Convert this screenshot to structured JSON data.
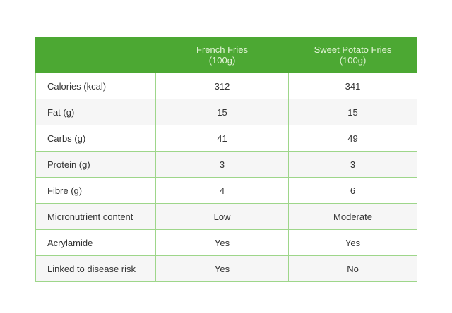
{
  "table": {
    "headers": [
      "",
      "French Fries\n(100g)",
      "Sweet Potato Fries\n(100g)"
    ],
    "header_lines": [
      [
        "French Fries",
        "(100g)"
      ],
      [
        "Sweet Potato Fries",
        "(100g)"
      ]
    ],
    "rows": [
      [
        "Calories (kcal)",
        "312",
        "341"
      ],
      [
        "Fat (g)",
        "15",
        "15"
      ],
      [
        "Carbs (g)",
        "41",
        "49"
      ],
      [
        "Protein (g)",
        "3",
        "3"
      ],
      [
        "Fibre (g)",
        "4",
        "6"
      ],
      [
        "Micronutrient content",
        "Low",
        "Moderate"
      ],
      [
        "Acrylamide",
        "Yes",
        "Yes"
      ],
      [
        "Linked to disease risk",
        "Yes",
        "No"
      ]
    ]
  },
  "colors": {
    "header_bg": "#4ca833",
    "border": "#9ed68a",
    "alt_row": "#f6f6f6"
  }
}
